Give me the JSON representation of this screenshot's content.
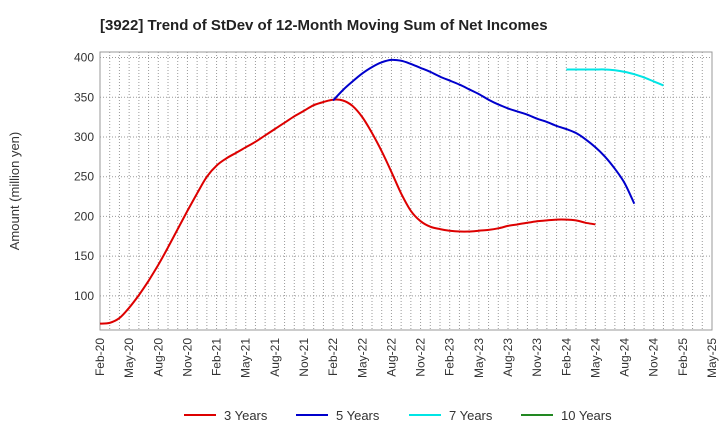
{
  "chart_data": {
    "type": "line",
    "title": "[3922]  Trend of StDev of 12-Month Moving Sum of Net Incomes",
    "xlabel": "",
    "ylabel": "Amount (million yen)",
    "ylim": [
      57,
      407
    ],
    "yticks": [
      100,
      150,
      200,
      250,
      300,
      350,
      400
    ],
    "xticks": [
      "Feb-20",
      "May-20",
      "Aug-20",
      "Nov-20",
      "Feb-21",
      "May-21",
      "Aug-21",
      "Nov-21",
      "Feb-22",
      "May-22",
      "Aug-22",
      "Nov-22",
      "Feb-23",
      "May-23",
      "Aug-23",
      "Nov-23",
      "Feb-24",
      "May-24",
      "Aug-24",
      "Nov-24",
      "Feb-25",
      "May-25"
    ],
    "x_start": "Feb-20",
    "x_end": "May-25",
    "grid": true,
    "legend_position": "bottom",
    "series": [
      {
        "name": "3 Years",
        "color": "#dd0000",
        "points": [
          [
            "Feb-20",
            65
          ],
          [
            "Mar-20",
            66
          ],
          [
            "Apr-20",
            72
          ],
          [
            "May-20",
            85
          ],
          [
            "Jun-20",
            101
          ],
          [
            "Jul-20",
            119
          ],
          [
            "Aug-20",
            139
          ],
          [
            "Sep-20",
            161
          ],
          [
            "Oct-20",
            184
          ],
          [
            "Nov-20",
            207
          ],
          [
            "Dec-20",
            229
          ],
          [
            "Jan-21",
            250
          ],
          [
            "Feb-21",
            264
          ],
          [
            "Mar-21",
            273
          ],
          [
            "Apr-21",
            280
          ],
          [
            "May-21",
            287
          ],
          [
            "Jun-21",
            294
          ],
          [
            "Jul-21",
            302
          ],
          [
            "Aug-21",
            310
          ],
          [
            "Sep-21",
            318
          ],
          [
            "Oct-21",
            326
          ],
          [
            "Nov-21",
            333
          ],
          [
            "Dec-21",
            340
          ],
          [
            "Jan-22",
            344
          ],
          [
            "Feb-22",
            347
          ],
          [
            "Mar-22",
            346
          ],
          [
            "Apr-22",
            339
          ],
          [
            "May-22",
            325
          ],
          [
            "Jun-22",
            305
          ],
          [
            "Jul-22",
            282
          ],
          [
            "Aug-22",
            256
          ],
          [
            "Sep-22",
            229
          ],
          [
            "Oct-22",
            207
          ],
          [
            "Nov-22",
            194
          ],
          [
            "Dec-22",
            187
          ],
          [
            "Jan-23",
            184
          ],
          [
            "Feb-23",
            182
          ],
          [
            "Mar-23",
            181
          ],
          [
            "Apr-23",
            181
          ],
          [
            "May-23",
            182
          ],
          [
            "Jun-23",
            183
          ],
          [
            "Jul-23",
            185
          ],
          [
            "Aug-23",
            188
          ],
          [
            "Sep-23",
            190
          ],
          [
            "Oct-23",
            192
          ],
          [
            "Nov-23",
            194
          ],
          [
            "Dec-23",
            195
          ],
          [
            "Jan-24",
            196
          ],
          [
            "Feb-24",
            196
          ],
          [
            "Mar-24",
            195
          ],
          [
            "Apr-24",
            192
          ],
          [
            "May-24",
            190
          ]
        ]
      },
      {
        "name": "5 Years",
        "color": "#0000cc",
        "points": [
          [
            "Feb-22",
            346
          ],
          [
            "Mar-22",
            359
          ],
          [
            "Apr-22",
            370
          ],
          [
            "May-22",
            380
          ],
          [
            "Jun-22",
            388
          ],
          [
            "Jul-22",
            394
          ],
          [
            "Aug-22",
            397
          ],
          [
            "Sep-22",
            396
          ],
          [
            "Oct-22",
            392
          ],
          [
            "Nov-22",
            387
          ],
          [
            "Dec-22",
            382
          ],
          [
            "Jan-23",
            376
          ],
          [
            "Feb-23",
            371
          ],
          [
            "Mar-23",
            366
          ],
          [
            "Apr-23",
            360
          ],
          [
            "May-23",
            354
          ],
          [
            "Jun-23",
            347
          ],
          [
            "Jul-23",
            341
          ],
          [
            "Aug-23",
            336
          ],
          [
            "Sep-23",
            332
          ],
          [
            "Oct-23",
            328
          ],
          [
            "Nov-23",
            323
          ],
          [
            "Dec-23",
            319
          ],
          [
            "Jan-24",
            314
          ],
          [
            "Feb-24",
            310
          ],
          [
            "Mar-24",
            305
          ],
          [
            "Apr-24",
            297
          ],
          [
            "May-24",
            287
          ],
          [
            "Jun-24",
            275
          ],
          [
            "Jul-24",
            260
          ],
          [
            "Aug-24",
            242
          ],
          [
            "Sep-24",
            216
          ]
        ]
      },
      {
        "name": "7 Years",
        "color": "#00e5e5",
        "points": [
          [
            "Feb-24",
            385
          ],
          [
            "Mar-24",
            385
          ],
          [
            "Apr-24",
            385
          ],
          [
            "May-24",
            385
          ],
          [
            "Jun-24",
            385
          ],
          [
            "Jul-24",
            384
          ],
          [
            "Aug-24",
            382
          ],
          [
            "Sep-24",
            379
          ],
          [
            "Oct-24",
            375
          ],
          [
            "Nov-24",
            370
          ],
          [
            "Dec-24",
            365
          ]
        ]
      },
      {
        "name": "10 Years",
        "color": "#228822",
        "points": []
      }
    ]
  }
}
